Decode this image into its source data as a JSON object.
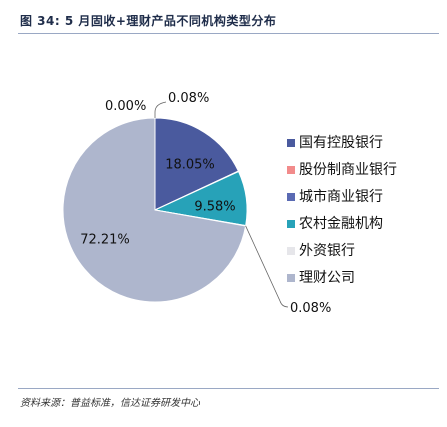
{
  "header": {
    "title": "图 34:  5 月固收+理财产品不同机构类型分布"
  },
  "footer": {
    "source": "资料来源：普益标准，信达证券研发中心"
  },
  "chart_data": {
    "type": "pie",
    "title": "",
    "legend_position": "right",
    "series": [
      {
        "name": "国有控股银行",
        "value": 18.05,
        "label": "18.05%",
        "color": "#4a5a9e"
      },
      {
        "name": "股份制商业银行",
        "value": 0.08,
        "label": "0.08%",
        "color": "#f28b8b"
      },
      {
        "name": "城市商业银行",
        "value": 0.0,
        "label": "",
        "color": "#5a6ab3"
      },
      {
        "name": "农村金融机构",
        "value": 9.58,
        "label": "9.58%",
        "color": "#27a2b8"
      },
      {
        "name": "外资银行",
        "value": 0.08,
        "label": "0.08%",
        "color": "#e6e6ea"
      },
      {
        "name": "理财公司",
        "value": 72.21,
        "label": "72.21%",
        "color": "#aeb6cd"
      }
    ],
    "extra_labels": [
      {
        "text": "0.00%"
      }
    ]
  }
}
